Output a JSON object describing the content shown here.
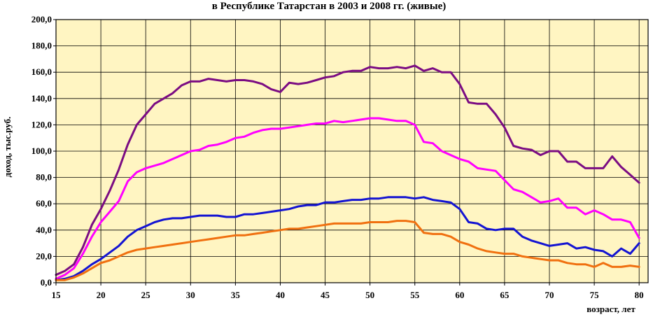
{
  "chart_data": {
    "type": "line",
    "title": "в Республике Татарстан в 2003 и 2008 гг. (живые)",
    "xlabel": "возраст, лет",
    "ylabel": "доход, тыс.руб.",
    "xlim": [
      15,
      81
    ],
    "ylim": [
      0,
      200
    ],
    "grid": true,
    "x_ticks": [
      "15",
      "20",
      "25",
      "30",
      "35",
      "40",
      "45",
      "50",
      "55",
      "60",
      "65",
      "70",
      "75",
      "80"
    ],
    "y_ticks": [
      "0,0",
      "20,0",
      "40,0",
      "60,0",
      "80,0",
      "100,0",
      "120,0",
      "140,0",
      "160,0",
      "180,0",
      "200,0"
    ],
    "plot_background": "#FFF5C2",
    "x": [
      15,
      16,
      17,
      18,
      19,
      20,
      21,
      22,
      23,
      24,
      25,
      26,
      27,
      28,
      29,
      30,
      31,
      32,
      33,
      34,
      35,
      36,
      37,
      38,
      39,
      40,
      41,
      42,
      43,
      44,
      45,
      46,
      47,
      48,
      49,
      50,
      51,
      52,
      53,
      54,
      55,
      56,
      57,
      58,
      59,
      60,
      61,
      62,
      63,
      64,
      65,
      66,
      67,
      68,
      69,
      70,
      71,
      72,
      73,
      74,
      75,
      76,
      77,
      78,
      79,
      80
    ],
    "series": [
      {
        "color": "#7B0C83",
        "values": [
          6,
          9,
          14,
          27,
          44,
          56,
          70,
          86,
          105,
          120,
          128,
          136,
          140,
          144,
          150,
          153,
          153,
          155,
          154,
          153,
          154,
          154,
          153,
          151,
          147,
          145,
          152,
          151,
          152,
          154,
          156,
          157,
          160,
          161,
          161,
          164,
          163,
          163,
          164,
          163,
          165,
          161,
          163,
          160,
          160,
          151,
          137,
          136,
          136,
          128,
          118,
          104,
          102,
          101,
          97,
          100,
          100,
          92,
          92,
          87,
          87,
          87,
          96,
          88,
          82,
          76
        ]
      },
      {
        "color": "#FF00FF",
        "values": [
          3,
          6,
          11,
          22,
          35,
          46,
          54,
          62,
          77,
          84,
          87,
          89,
          91,
          94,
          97,
          100,
          101,
          104,
          105,
          107,
          110,
          111,
          114,
          116,
          117,
          117,
          118,
          119,
          120,
          121,
          121,
          123,
          122,
          123,
          124,
          125,
          125,
          124,
          123,
          123,
          120,
          107,
          106,
          100,
          97,
          94,
          92,
          87,
          86,
          85,
          78,
          71,
          69,
          65,
          61,
          62,
          64,
          57,
          57,
          52,
          55,
          52,
          48,
          48,
          46,
          34
        ]
      },
      {
        "color": "#1414D2",
        "values": [
          2,
          3,
          5,
          9,
          14,
          18,
          23,
          28,
          35,
          40,
          43,
          46,
          48,
          49,
          49,
          50,
          51,
          51,
          51,
          50,
          50,
          52,
          52,
          53,
          54,
          55,
          56,
          58,
          59,
          59,
          61,
          61,
          62,
          63,
          63,
          64,
          64,
          65,
          65,
          65,
          64,
          65,
          63,
          62,
          61,
          56,
          46,
          45,
          41,
          40,
          41,
          41,
          35,
          32,
          30,
          28,
          29,
          30,
          26,
          27,
          25,
          24,
          20,
          26,
          22,
          30
        ]
      },
      {
        "color": "#F07010",
        "values": [
          2,
          2,
          4,
          7,
          11,
          15,
          17,
          20,
          23,
          25,
          26,
          27,
          28,
          29,
          30,
          31,
          32,
          33,
          34,
          35,
          36,
          36,
          37,
          38,
          39,
          40,
          41,
          41,
          42,
          43,
          44,
          45,
          45,
          45,
          45,
          46,
          46,
          46,
          47,
          47,
          46,
          38,
          37,
          37,
          35,
          31,
          29,
          26,
          24,
          23,
          22,
          22,
          20,
          19,
          18,
          17,
          17,
          15,
          14,
          14,
          12,
          15,
          12,
          12,
          13,
          12
        ]
      }
    ]
  }
}
